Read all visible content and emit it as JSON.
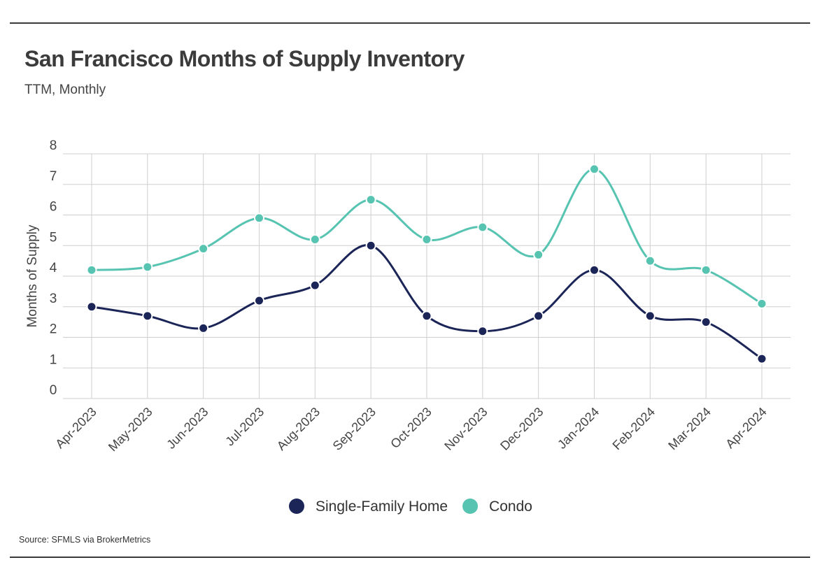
{
  "header": {
    "title": "San Francisco Months of Supply Inventory",
    "subtitle": "TTM, Monthly"
  },
  "footer": {
    "source": "Source:  SFMLS via BrokerMetrics"
  },
  "colors": {
    "single_family": "#1b2557",
    "condo": "#57c4b2",
    "grid": "#cfcfcf",
    "axis_text": "#444444"
  },
  "chart_data": {
    "type": "line",
    "title": "San Francisco Months of Supply Inventory",
    "subtitle": "TTM, Monthly",
    "xlabel": "",
    "ylabel": "Months of Supply",
    "ylim": [
      0,
      8
    ],
    "yticks": [
      0,
      1,
      2,
      3,
      4,
      5,
      6,
      7,
      8
    ],
    "grid": true,
    "smooth": true,
    "legend_position": "bottom-center",
    "categories": [
      "Apr-2023",
      "May-2023",
      "Jun-2023",
      "Jul-2023",
      "Aug-2023",
      "Sep-2023",
      "Oct-2023",
      "Nov-2023",
      "Dec-2023",
      "Jan-2024",
      "Feb-2024",
      "Mar-2024",
      "Apr-2024"
    ],
    "series": [
      {
        "name": "Single-Family Home",
        "color": "#1b2557",
        "values": [
          3.0,
          2.7,
          2.3,
          3.2,
          3.7,
          5.0,
          2.7,
          2.2,
          2.7,
          4.2,
          2.7,
          2.5,
          1.3
        ]
      },
      {
        "name": "Condo",
        "color": "#57c4b2",
        "values": [
          4.2,
          4.3,
          4.9,
          5.9,
          5.2,
          6.5,
          5.2,
          5.6,
          4.7,
          7.5,
          4.5,
          4.2,
          3.1
        ]
      }
    ]
  }
}
